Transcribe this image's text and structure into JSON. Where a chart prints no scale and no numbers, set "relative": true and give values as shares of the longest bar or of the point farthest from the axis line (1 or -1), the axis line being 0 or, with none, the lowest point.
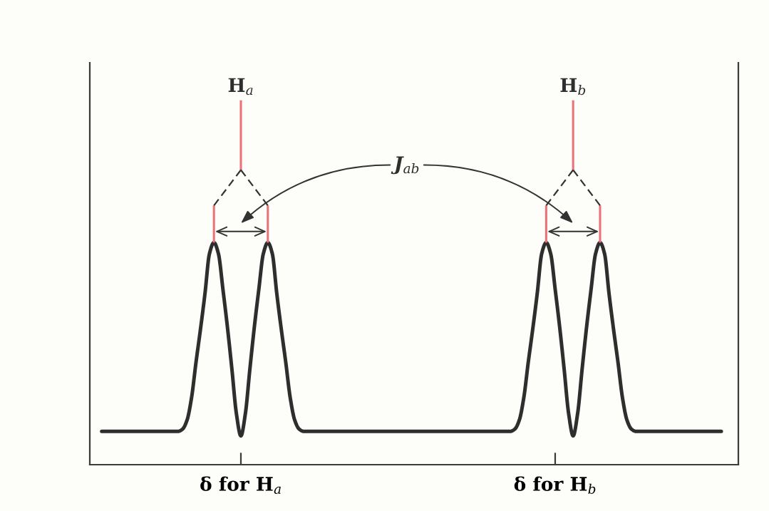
{
  "chart_data": {
    "type": "line",
    "relative": true,
    "tick_labels": "x",
    "categories": [
      null,
      null,
      null,
      null,
      null,
      null,
      null,
      null,
      null,
      null,
      null,
      null,
      null,
      null,
      null,
      null,
      null,
      null,
      null,
      null,
      null,
      null,
      null,
      null,
      null,
      null,
      null,
      null,
      null,
      null,
      null,
      "δ for H$_{a}$",
      null,
      null,
      null,
      null,
      null,
      null,
      null,
      null,
      null,
      null,
      null,
      null,
      null,
      null,
      null,
      null,
      null,
      null,
      null,
      null,
      null,
      null,
      null,
      null,
      null,
      null,
      null,
      null,
      null,
      null,
      null,
      null,
      null,
      null,
      null,
      null,
      null,
      null,
      null,
      null,
      null,
      null,
      null,
      null,
      null,
      null,
      null,
      null,
      null,
      null,
      null,
      null,
      null,
      null,
      null,
      null,
      null,
      null,
      null,
      null,
      null,
      null,
      null,
      null,
      null,
      null,
      null,
      null,
      null,
      "δ for H$_{b}$",
      null,
      null,
      null,
      null,
      null,
      null,
      null,
      null,
      null,
      null,
      null,
      null,
      null,
      null,
      null,
      null,
      null,
      null,
      null,
      null,
      null,
      null,
      null,
      null,
      null,
      null,
      null,
      null,
      null,
      null,
      null,
      null,
      null,
      null,
      null,
      null,
      null
    ],
    "series": [
      {
        "color": "#2e2e2e",
        "values": [
          0.15,
          0.15,
          0.15,
          0.15,
          0.15,
          0.15,
          0.15,
          0.15,
          0.15,
          0.15,
          0.15,
          0.15,
          0.15,
          0.15,
          0.15,
          0.15,
          0.15,
          0.15,
          0.16,
          0.2,
          0.3,
          0.46,
          0.61,
          0.77,
          0.95,
          1,
          0.95,
          0.79,
          0.62,
          0.43,
          0.23,
          0.13,
          0.23,
          0.43,
          0.62,
          0.79,
          0.95,
          1,
          0.95,
          0.77,
          0.61,
          0.46,
          0.3,
          0.2,
          0.16,
          0.15,
          0.15,
          0.15,
          0.15,
          0.15,
          0.15,
          0.15,
          0.15,
          0.15,
          0.15,
          0.15,
          0.15,
          0.15,
          0.15,
          0.15,
          0.15,
          0.15,
          0.15,
          0.15,
          0.15,
          0.15,
          0.15,
          0.15,
          0.15,
          0.15,
          0.15,
          0.15,
          0.15,
          0.15,
          0.15,
          0.15,
          0.15,
          0.15,
          0.15,
          0.15,
          0.15,
          0.15,
          0.15,
          0.15,
          0.15,
          0.15,
          0.15,
          0.15,
          0.15,
          0.15,
          0.15,
          0.15,
          0.16,
          0.2,
          0.3,
          0.46,
          0.61,
          0.77,
          0.95,
          1,
          0.95,
          0.79,
          0.62,
          0.43,
          0.23,
          0.13,
          0.23,
          0.43,
          0.62,
          0.79,
          0.95,
          1,
          0.95,
          0.77,
          0.61,
          0.46,
          0.3,
          0.2,
          0.16,
          0.15,
          0.15,
          0.15,
          0.15,
          0.15,
          0.15,
          0.15,
          0.15,
          0.15,
          0.15,
          0.15,
          0.15,
          0.15,
          0.15,
          0.15,
          0.15,
          0.15,
          0.15,
          0.15,
          0.15
        ]
      }
    ],
    "annotations": [
      "H$_{a}$",
      "H$_{b}$",
      "J$_{ab}$"
    ]
  }
}
